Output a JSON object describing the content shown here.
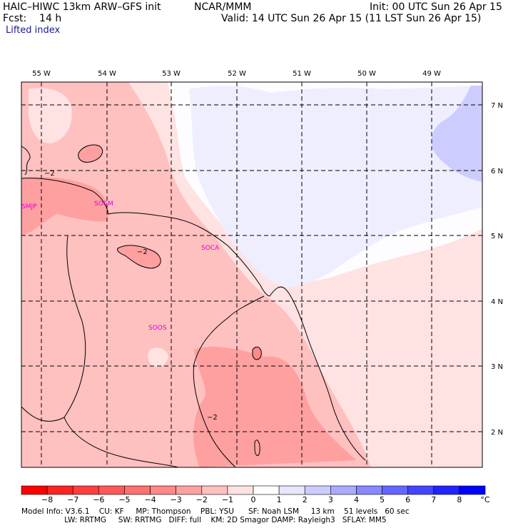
{
  "header": {
    "model": "HAIC–HIWC 13km ARW–GFS init",
    "institution": "NCAR/MMM",
    "init": "Init: 00 UTC Sun 26 Apr 15",
    "fcst": "Fcst:    14 h",
    "valid": "Valid: 14 UTC Sun 26 Apr 15 (11 LST Sun 26 Apr 15)",
    "field": "Lifted index"
  },
  "longitudes": [
    "55 W",
    "54 W",
    "53 W",
    "52 W",
    "51 W",
    "50 W",
    "49 W"
  ],
  "latitudes": [
    "7 N",
    "6 N",
    "5 N",
    "4 N",
    "3 N",
    "2 N"
  ],
  "stations": [
    "SMJP",
    "SOCA",
    "SOOS"
  ],
  "stations_2": [
    "SOCM"
  ],
  "contour_labels": [
    "−2",
    "−2",
    "−2"
  ],
  "colorbar": {
    "ticks": [
      "−8",
      "−7",
      "−6",
      "−5",
      "−4",
      "−3",
      "−2",
      "−1",
      "0",
      "1",
      "2",
      "3",
      "4",
      "5",
      "6",
      "7",
      "8"
    ],
    "unit": "°C",
    "colors": [
      "#ff0000",
      "#ff2222",
      "#ff3e3e",
      "#ff5858",
      "#ff7070",
      "#ff8888",
      "#ffa0a0",
      "#ffc0c0",
      "#ffe2e2",
      "#ffffff",
      "#e6e6ff",
      "#ccccff",
      "#aaaaff",
      "#8888ff",
      "#6666ff",
      "#4444ff",
      "#2222ff",
      "#0000ff"
    ]
  },
  "footer": {
    "line1": "Model Info: V3.6.1    CU: KF     MP: Thompson    PBL: YSU      SF: Noah LSM     13 km    51 levels   60 sec",
    "line2": "                  LW: RRTMG     SW: RRTMG   DIFF: full    KM: 2D Smagor DAMP: Rayleigh3   SFLAY: MM5"
  }
}
